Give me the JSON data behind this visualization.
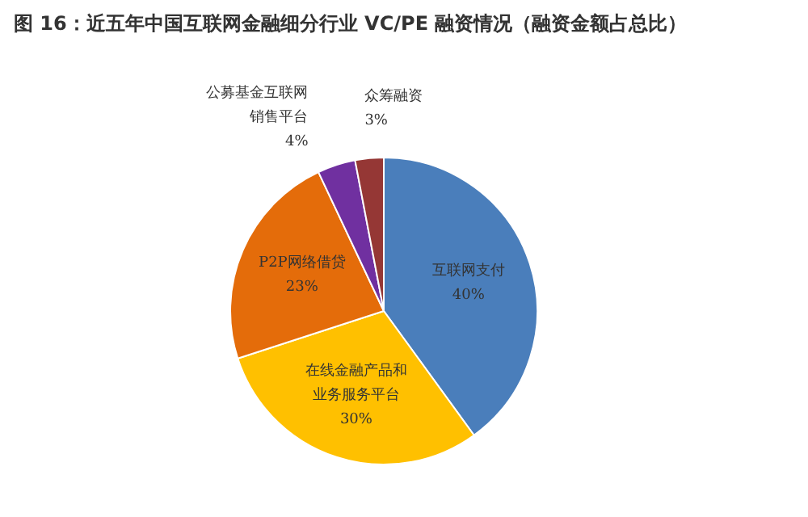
{
  "chart_data": {
    "type": "pie",
    "title": "图 16：近五年中国互联网金融细分行业 VC/PE 融资情况（融资金额占总比）",
    "categories": [
      "互联网支付",
      "在线金融产品和业务服务平台",
      "P2P网络借贷",
      "公募基金互联网销售平台",
      "众筹融资"
    ],
    "values": [
      40,
      30,
      23,
      4,
      3
    ],
    "value_labels": [
      "40%",
      "30%",
      "23%",
      "4%",
      "3%"
    ],
    "colors": [
      "#4a7ebb",
      "#ffc000",
      "#e46c0a",
      "#7030a0",
      "#953735"
    ]
  }
}
